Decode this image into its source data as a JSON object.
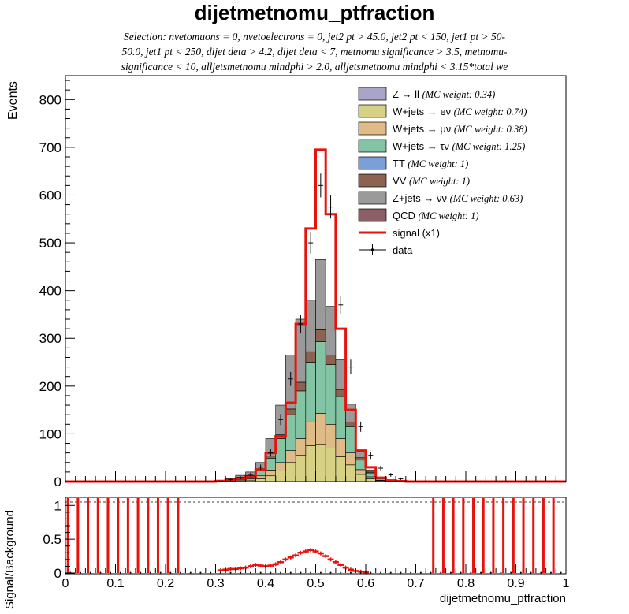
{
  "title": "dijetmetnomu_ptfraction",
  "subtitle_lines": [
    "Selection: nvetomuons = 0, nvetoelectrons = 0, jet2 pt > 45.0, jet2 pt < 150, jet1 pt > 50-",
    "50.0, jet1 pt < 250, dijet deta > 4.2, dijet deta < 7, metnomu significance > 3.5, metnomu-",
    "significance < 10, alljetsmetnomu mindphi > 2.0, alljetsmetnomu mindphi < 3.15*total we"
  ],
  "colors": {
    "Zll": "#a9a5c8",
    "Wenu": "#d6d185",
    "Wmunu": "#dfbb87",
    "Wtaunu": "#82c4a4",
    "TT": "#7b9fd9",
    "VV": "#8c6352",
    "Znunu": "#9a9a9a",
    "QCD": "#8c5e66",
    "signal": "#e8120c",
    "data": "#000000"
  },
  "chart_data": [
    {
      "type": "stacked-histogram",
      "ylabel": "Events",
      "ylim": [
        0,
        850
      ],
      "xlim": [
        0,
        1
      ],
      "bin_width": 0.02,
      "y_ticks": [
        0,
        100,
        200,
        300,
        400,
        500,
        600,
        700,
        800
      ],
      "legend_position": "top-right",
      "bins_x": [
        0.3,
        0.32,
        0.34,
        0.36,
        0.38,
        0.4,
        0.42,
        0.44,
        0.46,
        0.48,
        0.5,
        0.52,
        0.54,
        0.56,
        0.58,
        0.6,
        0.62,
        0.64,
        0.66
      ],
      "stack": [
        {
          "key": "Zll",
          "label": "Z → ll",
          "weight": "(MC weight: 0.34)",
          "values": [
            0,
            0,
            0,
            0,
            0,
            0,
            0,
            0,
            0,
            0,
            0,
            0,
            0,
            0,
            0,
            0,
            0,
            0,
            0
          ]
        },
        {
          "key": "Wenu",
          "label": "W+jets → eν",
          "weight": "(MC weight: 0.74)",
          "values": [
            0.5,
            1,
            2,
            3,
            6,
            12,
            22,
            40,
            55,
            75,
            78,
            70,
            52,
            35,
            15,
            6,
            2,
            1,
            0.5
          ]
        },
        {
          "key": "Wmunu",
          "label": "W+jets → μν",
          "weight": "(MC weight: 0.38)",
          "values": [
            0.5,
            1,
            2,
            3,
            6,
            12,
            18,
            25,
            35,
            50,
            65,
            50,
            38,
            25,
            10,
            4,
            1,
            0.5,
            0
          ]
        },
        {
          "key": "Wtaunu",
          "label": "W+jets → τν",
          "weight": "(MC weight: 1.25)",
          "values": [
            1,
            2,
            4,
            6,
            12,
            25,
            50,
            75,
            100,
            125,
            150,
            125,
            88,
            55,
            20,
            8,
            3,
            1,
            0.5
          ]
        },
        {
          "key": "TT",
          "label": "TT",
          "weight": "(MC weight: 1)",
          "values": [
            0,
            0,
            0,
            0,
            0,
            0,
            0,
            0,
            0,
            0,
            0,
            0,
            0,
            0,
            0,
            0,
            0,
            0,
            0
          ]
        },
        {
          "key": "VV",
          "label": "VV",
          "weight": "(MC weight: 1)",
          "values": [
            0,
            0,
            1,
            1,
            3,
            5,
            8,
            12,
            18,
            22,
            25,
            20,
            15,
            10,
            5,
            2,
            1,
            0.5,
            0
          ]
        },
        {
          "key": "Znunu",
          "label": "Z+jets → νν",
          "weight": "(MC weight: 0.63)",
          "values": [
            1,
            2,
            4,
            7,
            13,
            36,
            62,
            113,
            132,
            108,
            147,
            102,
            62,
            37,
            14,
            4,
            2,
            1,
            0.5
          ]
        },
        {
          "key": "QCD",
          "label": "QCD",
          "weight": "(MC weight: 1)",
          "values": [
            0,
            0,
            0,
            0,
            0,
            0,
            0,
            0,
            0,
            0,
            0,
            0,
            0,
            0,
            0,
            0,
            0,
            0,
            0
          ]
        }
      ],
      "signal": {
        "label": "signal (x1)",
        "values": [
          1,
          3,
          6,
          10,
          25,
          60,
          95,
          165,
          330,
          530,
          695,
          560,
          320,
          150,
          65,
          30,
          8,
          2,
          1
        ]
      },
      "data": {
        "label": "data",
        "values": [
          1,
          4,
          8,
          15,
          30,
          60,
          130,
          215,
          330,
          500,
          620,
          575,
          370,
          240,
          115,
          55,
          28,
          14,
          6
        ]
      }
    },
    {
      "type": "ratio",
      "ylabel": "Signal/Background",
      "xlabel": "dijetmetnomu_ptfraction",
      "ylim": [
        0,
        1.05
      ],
      "y_ticks": [
        0,
        0.5,
        1
      ],
      "x_ticks": [
        0,
        0.1,
        0.2,
        0.3,
        0.4,
        0.5,
        0.6,
        0.7,
        0.8,
        0.9,
        1
      ],
      "ratio_x": [
        0.31,
        0.32,
        0.33,
        0.34,
        0.35,
        0.36,
        0.37,
        0.38,
        0.39,
        0.4,
        0.41,
        0.42,
        0.43,
        0.44,
        0.45,
        0.46,
        0.47,
        0.48,
        0.49,
        0.5,
        0.51,
        0.52,
        0.53,
        0.54,
        0.55,
        0.56,
        0.57,
        0.58,
        0.59,
        0.6
      ],
      "ratio_y": [
        0.04,
        0.05,
        0.06,
        0.06,
        0.07,
        0.08,
        0.1,
        0.12,
        0.11,
        0.1,
        0.11,
        0.13,
        0.16,
        0.2,
        0.23,
        0.26,
        0.3,
        0.32,
        0.34,
        0.32,
        0.29,
        0.25,
        0.2,
        0.16,
        0.12,
        0.08,
        0.05,
        0.03,
        0.02,
        0.01
      ],
      "spike_x": [
        0.005,
        0.025,
        0.045,
        0.065,
        0.085,
        0.105,
        0.125,
        0.145,
        0.165,
        0.185,
        0.205,
        0.225,
        0.735,
        0.755,
        0.775,
        0.795,
        0.815,
        0.835,
        0.855,
        0.875,
        0.895,
        0.915,
        0.935,
        0.955,
        0.975
      ]
    }
  ]
}
